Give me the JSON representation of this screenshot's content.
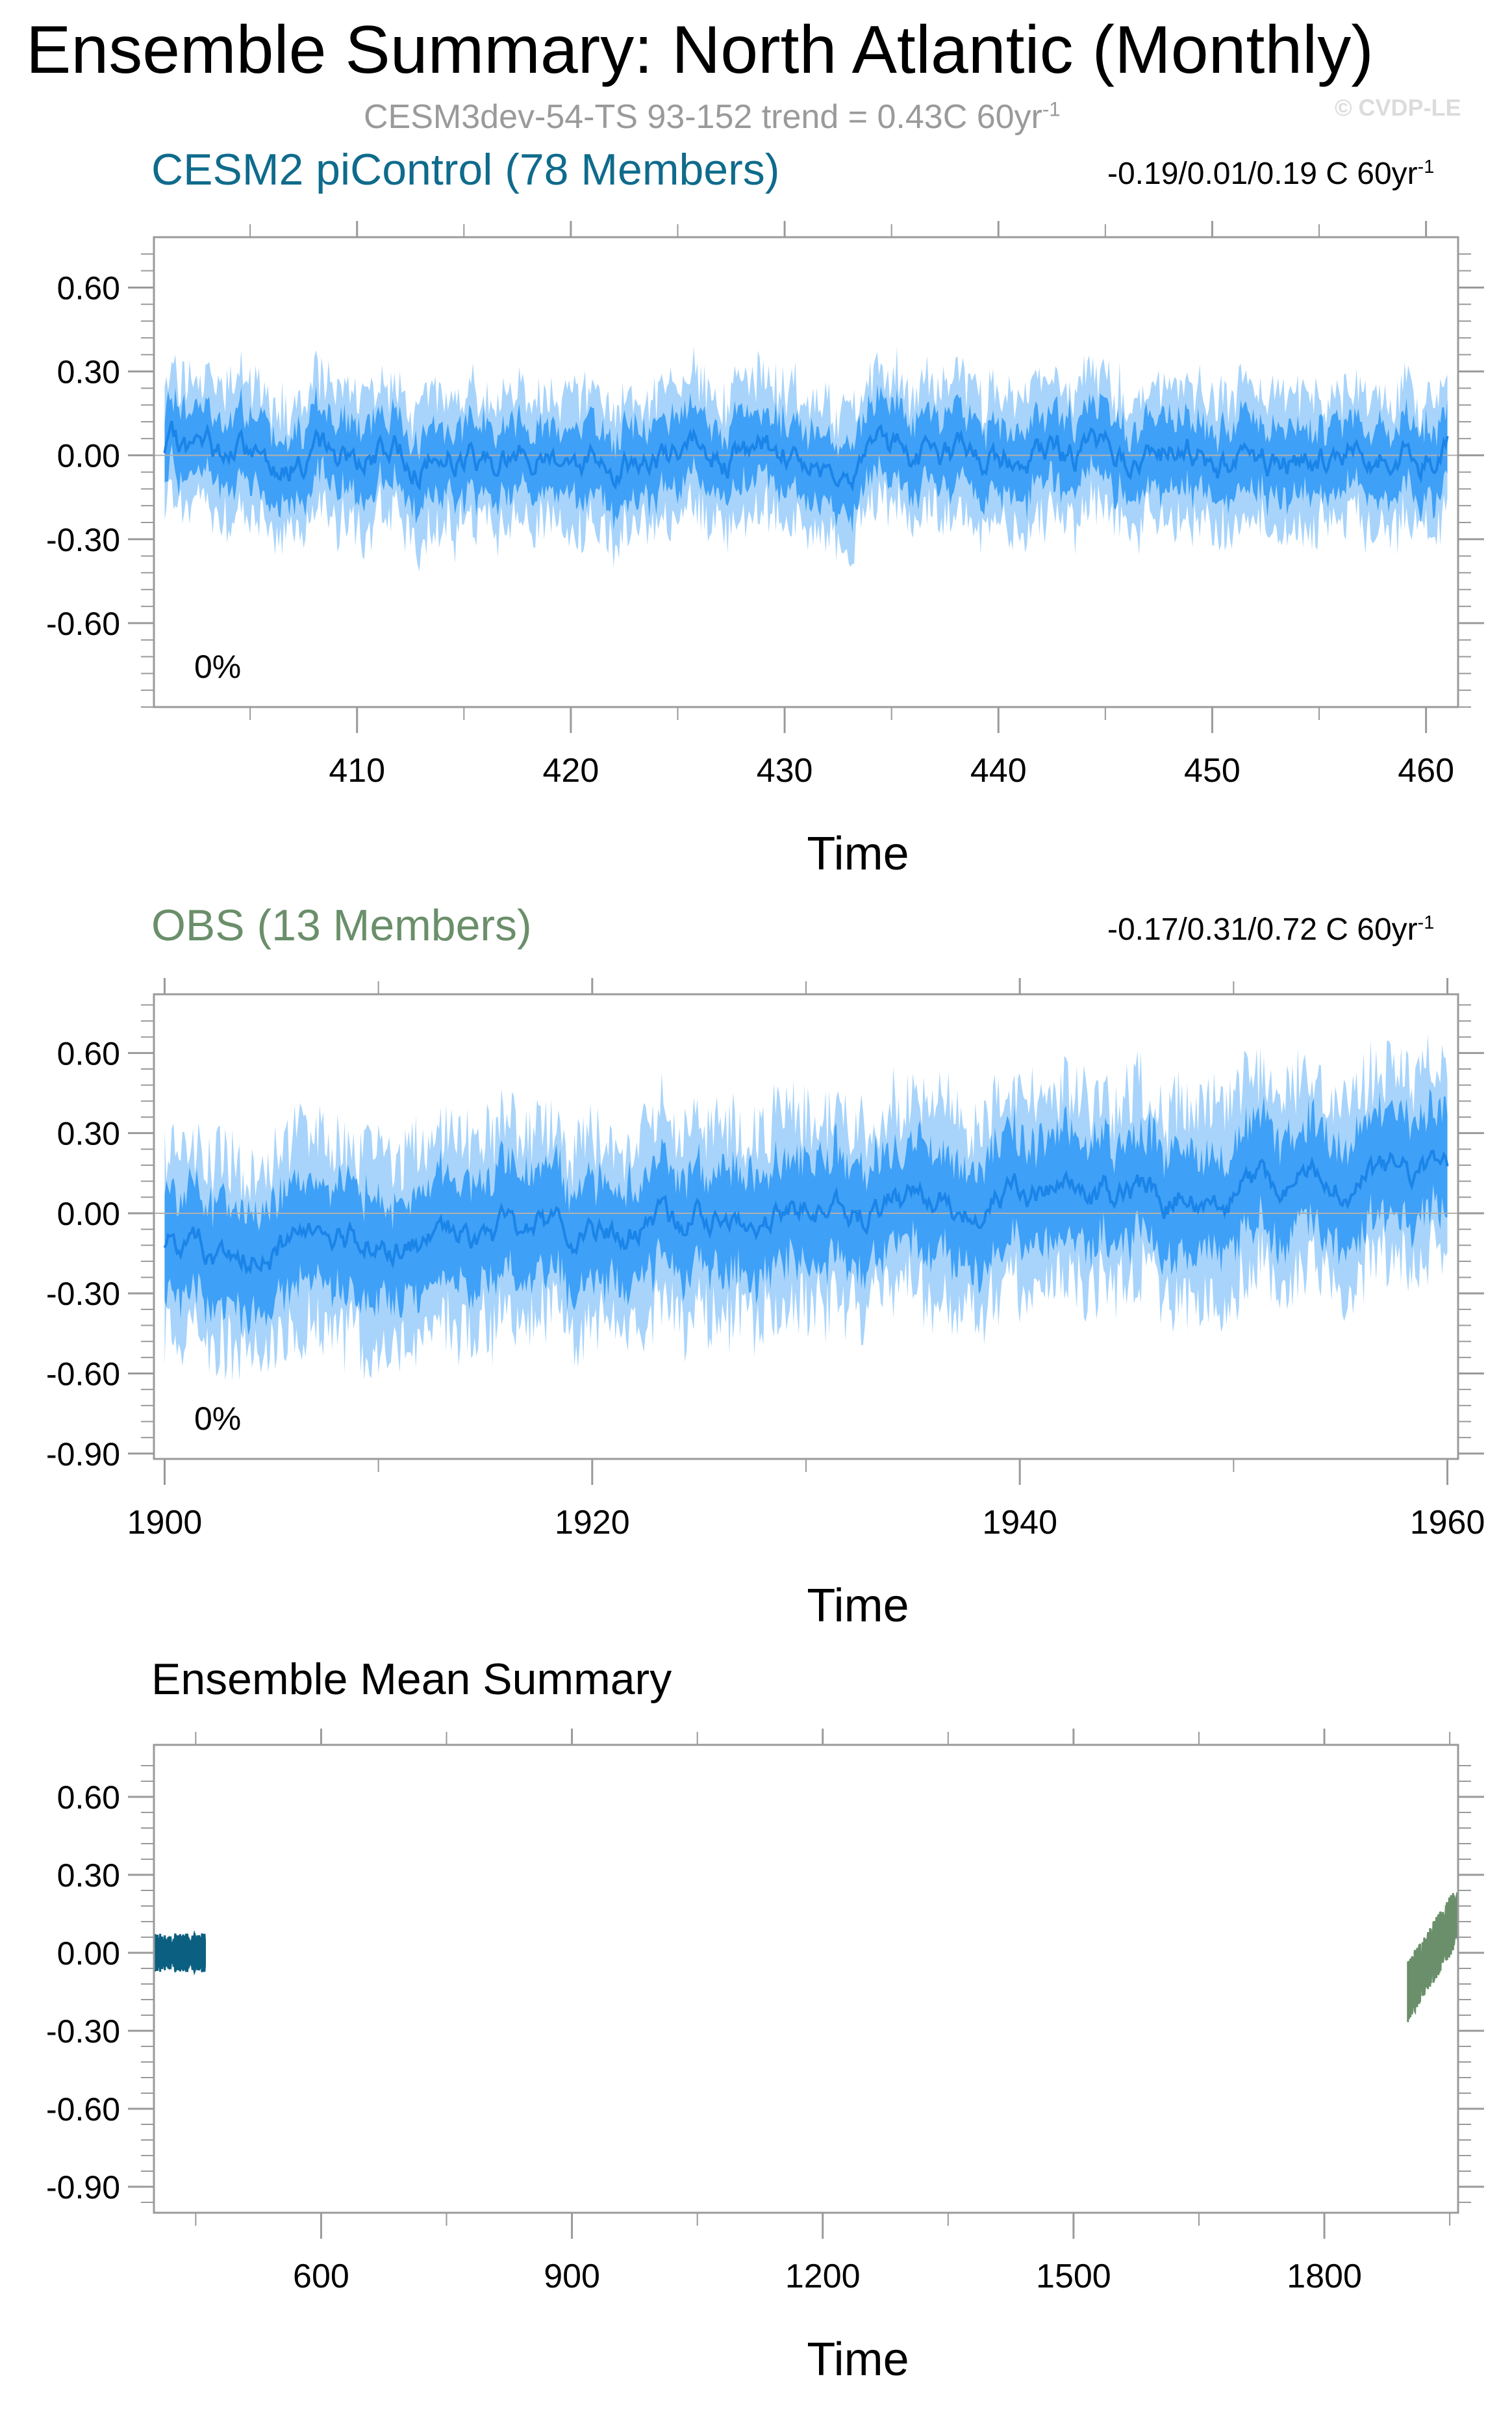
{
  "title": "Ensemble Summary: North Atlantic (Monthly)",
  "subtitle": "CESM3dev-54-TS 93-152 trend = 0.43C 60yr",
  "subtitle_sup": "-1",
  "watermark": "© CVDP-LE",
  "colors": {
    "band_outer": "#a8d4fb",
    "band_inner": "#3ea0f7",
    "mean_line": "#1b84e8",
    "cesm_color": "#0b5f80",
    "obs_color": "#6a8f6a"
  },
  "chart_data": [
    {
      "type": "area",
      "title": "CESM2 piControl (78 Members)",
      "title_color": "#0f6b8c",
      "trend_range": "-0.19/0.01/0.19 C 60yr",
      "trend_sup": "-1",
      "percent_label": "0%",
      "xlabel": "Time",
      "ylabel": "",
      "xlim": [
        400.5,
        461.5
      ],
      "ylim": [
        -0.9,
        0.78
      ],
      "xticks": [
        410,
        420,
        430,
        440,
        450,
        460
      ],
      "xtick_labels": [
        "410",
        "420",
        "430",
        "440",
        "450",
        "460"
      ],
      "yticks": [
        0.6,
        0.3,
        0.0,
        -0.3,
        -0.6
      ],
      "ytick_labels": [
        "0.60",
        "0.30",
        "0.00",
        "-0.30",
        "-0.60"
      ],
      "series_x": [
        401,
        461
      ],
      "mean_trend": [
        0.0,
        0.0
      ],
      "inner_halfwidth": 0.13,
      "outer_halfwidth": 0.25,
      "grid": false
    },
    {
      "type": "area",
      "title": "OBS (13 Members)",
      "title_color": "#6a8f6a",
      "trend_range": "-0.17/0.31/0.72 C 60yr",
      "trend_sup": "-1",
      "percent_label": "0%",
      "xlabel": "Time",
      "ylabel": "",
      "xlim": [
        1899.5,
        1960.5
      ],
      "ylim": [
        -0.92,
        0.82
      ],
      "xticks": [
        1900,
        1920,
        1940,
        1960
      ],
      "xtick_labels": [
        "1900",
        "1920",
        "1940",
        "1960"
      ],
      "yticks": [
        0.6,
        0.3,
        0.0,
        -0.3,
        -0.6,
        -0.9
      ],
      "ytick_labels": [
        "0.60",
        "0.30",
        "0.00",
        "-0.30",
        "-0.60",
        "-0.90"
      ],
      "series_x": [
        1900,
        1960
      ],
      "mean_trend": [
        -0.15,
        0.15
      ],
      "inner_halfwidth": 0.2,
      "outer_halfwidth": 0.38,
      "grid": false
    },
    {
      "type": "line",
      "title": "Ensemble Mean Summary",
      "title_color": "#000000",
      "xlabel": "Time",
      "ylabel": "",
      "xlim": [
        400,
        1960
      ],
      "ylim": [
        -1.0,
        0.8
      ],
      "xticks": [
        600,
        900,
        1200,
        1500,
        1800
      ],
      "xtick_labels": [
        "600",
        "900",
        "1200",
        "1500",
        "1800"
      ],
      "yticks": [
        0.6,
        0.3,
        0.0,
        -0.3,
        -0.6,
        -0.9
      ],
      "ytick_labels": [
        "0.60",
        "0.30",
        "0.00",
        "-0.30",
        "-0.60",
        "-0.90"
      ],
      "series": [
        {
          "color": "#0b5f80",
          "x": [
            401,
            461
          ],
          "y": [
            0.0,
            0.0
          ],
          "spread": 0.05
        },
        {
          "color": "#6a8f6a",
          "x": [
            1900,
            1960
          ],
          "y": [
            -0.15,
            0.15
          ],
          "spread": 0.08
        }
      ],
      "grid": false
    }
  ]
}
